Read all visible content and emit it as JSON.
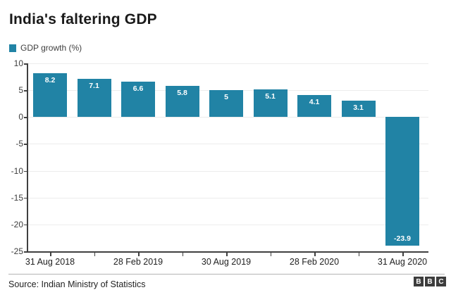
{
  "title": "India's faltering GDP",
  "legend": {
    "label": "GDP growth (%)",
    "color": "#2183a5"
  },
  "chart_data": {
    "type": "bar",
    "title": "India's faltering GDP",
    "series_label": "GDP growth (%)",
    "values": [
      8.2,
      7.1,
      6.6,
      5.8,
      5,
      5.1,
      4.1,
      3.1,
      -23.9
    ],
    "value_labels": [
      "8.2",
      "7.1",
      "6.6",
      "5.8",
      "5",
      "5.1",
      "4.1",
      "3.1",
      "-23.9"
    ],
    "x_ticks": [
      {
        "bar": 0,
        "label": "31 Aug 2018"
      },
      {
        "bar": 2,
        "label": "28 Feb 2019"
      },
      {
        "bar": 4,
        "label": "30 Aug 2019"
      },
      {
        "bar": 6,
        "label": "28 Feb 2020"
      },
      {
        "bar": 8,
        "label": "31 Aug 2020"
      }
    ],
    "yticks": [
      10,
      5,
      0,
      -5,
      -10,
      -15,
      -20,
      -25
    ],
    "ylim": [
      -25,
      10
    ],
    "xlabel": "",
    "ylabel": "",
    "bar_color": "#2183a5",
    "grid": true,
    "legend_position": "top-left"
  },
  "footer": {
    "source": "Source: Indian Ministry of Statistics",
    "logo_letters": [
      "B",
      "B",
      "C"
    ]
  }
}
